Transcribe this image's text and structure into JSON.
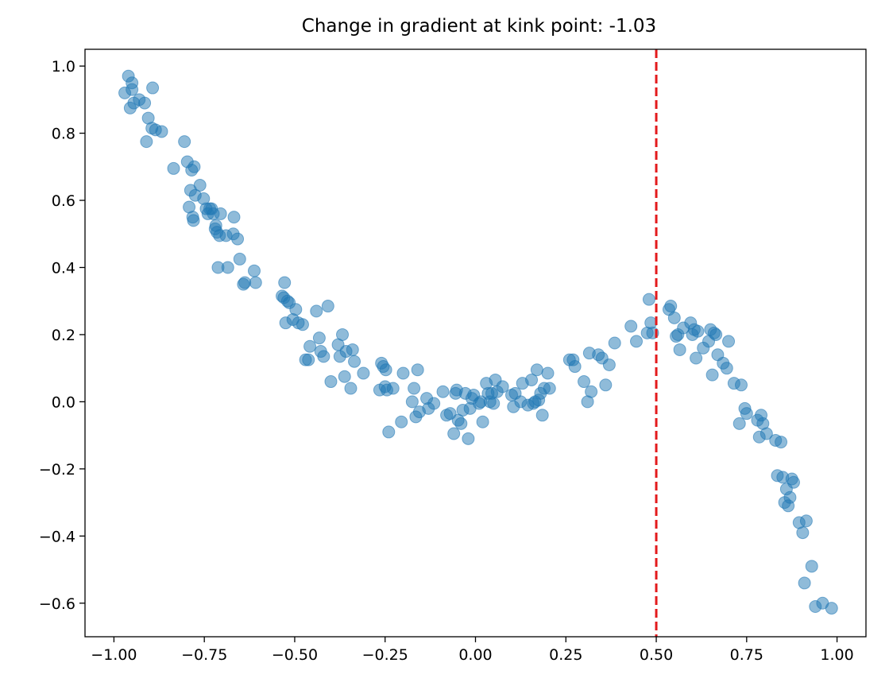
{
  "chart_data": {
    "type": "scatter",
    "title": "Change in gradient at kink point: -1.03",
    "xlabel": "",
    "ylabel": "",
    "xlim": [
      -1.08,
      1.08
    ],
    "ylim": [
      -0.7,
      1.05
    ],
    "x_ticks": [
      -1.0,
      -0.75,
      -0.5,
      -0.25,
      0.0,
      0.25,
      0.5,
      0.75,
      1.0
    ],
    "x_tick_labels": [
      "−1.00",
      "−0.75",
      "−0.50",
      "−0.25",
      "0.00",
      "0.25",
      "0.50",
      "0.75",
      "1.00"
    ],
    "y_ticks": [
      -0.6,
      -0.4,
      -0.2,
      0.0,
      0.2,
      0.4,
      0.6,
      0.8,
      1.0
    ],
    "y_tick_labels": [
      "−0.6",
      "−0.4",
      "−0.2",
      "0.0",
      "0.2",
      "0.4",
      "0.6",
      "0.8",
      "1.0"
    ],
    "grid": false,
    "marker_color": "#1f77b4",
    "kink_line": {
      "x": 0.5,
      "color": "#e31a1c",
      "style": "dashed"
    },
    "points": [
      [
        -0.97,
        0.92
      ],
      [
        -0.96,
        0.97
      ],
      [
        -0.955,
        0.875
      ],
      [
        -0.95,
        0.93
      ],
      [
        -0.945,
        0.89
      ],
      [
        -0.95,
        0.95
      ],
      [
        -0.93,
        0.9
      ],
      [
        -0.915,
        0.89
      ],
      [
        -0.91,
        0.775
      ],
      [
        -0.905,
        0.845
      ],
      [
        -0.895,
        0.815
      ],
      [
        -0.893,
        0.935
      ],
      [
        -0.885,
        0.81
      ],
      [
        -0.868,
        0.805
      ],
      [
        -0.835,
        0.695
      ],
      [
        -0.805,
        0.775
      ],
      [
        -0.797,
        0.715
      ],
      [
        -0.792,
        0.58
      ],
      [
        -0.788,
        0.63
      ],
      [
        -0.785,
        0.69
      ],
      [
        -0.782,
        0.55
      ],
      [
        -0.78,
        0.54
      ],
      [
        -0.778,
        0.7
      ],
      [
        -0.775,
        0.615
      ],
      [
        -0.762,
        0.645
      ],
      [
        -0.752,
        0.605
      ],
      [
        -0.745,
        0.575
      ],
      [
        -0.74,
        0.56
      ],
      [
        -0.735,
        0.575
      ],
      [
        -0.73,
        0.575
      ],
      [
        -0.725,
        0.56
      ],
      [
        -0.72,
        0.515
      ],
      [
        -0.718,
        0.525
      ],
      [
        -0.715,
        0.505
      ],
      [
        -0.712,
        0.4
      ],
      [
        -0.708,
        0.495
      ],
      [
        -0.705,
        0.56
      ],
      [
        -0.69,
        0.495
      ],
      [
        -0.685,
        0.4
      ],
      [
        -0.67,
        0.5
      ],
      [
        -0.668,
        0.55
      ],
      [
        -0.658,
        0.485
      ],
      [
        -0.652,
        0.425
      ],
      [
        -0.642,
        0.35
      ],
      [
        -0.638,
        0.355
      ],
      [
        -0.612,
        0.39
      ],
      [
        -0.608,
        0.355
      ],
      [
        -0.535,
        0.315
      ],
      [
        -0.53,
        0.31
      ],
      [
        -0.528,
        0.355
      ],
      [
        -0.525,
        0.235
      ],
      [
        -0.52,
        0.3
      ],
      [
        -0.515,
        0.295
      ],
      [
        -0.505,
        0.245
      ],
      [
        -0.497,
        0.275
      ],
      [
        -0.49,
        0.235
      ],
      [
        -0.478,
        0.23
      ],
      [
        -0.47,
        0.125
      ],
      [
        -0.462,
        0.125
      ],
      [
        -0.458,
        0.165
      ],
      [
        -0.44,
        0.27
      ],
      [
        -0.432,
        0.19
      ],
      [
        -0.428,
        0.15
      ],
      [
        -0.42,
        0.135
      ],
      [
        -0.408,
        0.285
      ],
      [
        -0.4,
        0.06
      ],
      [
        -0.38,
        0.17
      ],
      [
        -0.375,
        0.135
      ],
      [
        -0.368,
        0.2
      ],
      [
        -0.362,
        0.075
      ],
      [
        -0.358,
        0.15
      ],
      [
        -0.345,
        0.04
      ],
      [
        -0.34,
        0.155
      ],
      [
        -0.335,
        0.12
      ],
      [
        -0.31,
        0.085
      ],
      [
        -0.265,
        0.035
      ],
      [
        -0.26,
        0.115
      ],
      [
        -0.255,
        0.105
      ],
      [
        -0.25,
        0.045
      ],
      [
        -0.248,
        0.095
      ],
      [
        -0.245,
        0.035
      ],
      [
        -0.24,
        -0.09
      ],
      [
        -0.228,
        0.04
      ],
      [
        -0.205,
        -0.06
      ],
      [
        -0.2,
        0.085
      ],
      [
        -0.175,
        0.0
      ],
      [
        -0.17,
        0.04
      ],
      [
        -0.165,
        -0.045
      ],
      [
        -0.16,
        0.095
      ],
      [
        -0.155,
        -0.03
      ],
      [
        -0.135,
        0.01
      ],
      [
        -0.13,
        -0.02
      ],
      [
        -0.115,
        -0.005
      ],
      [
        -0.09,
        0.03
      ],
      [
        -0.08,
        -0.04
      ],
      [
        -0.07,
        -0.035
      ],
      [
        -0.06,
        -0.095
      ],
      [
        -0.055,
        0.025
      ],
      [
        -0.052,
        0.035
      ],
      [
        -0.048,
        -0.055
      ],
      [
        -0.04,
        -0.065
      ],
      [
        -0.035,
        -0.025
      ],
      [
        -0.028,
        0.025
      ],
      [
        -0.02,
        -0.11
      ],
      [
        -0.015,
        -0.02
      ],
      [
        -0.01,
        0.01
      ],
      [
        -0.005,
        0.02
      ],
      [
        0.01,
        -0.005
      ],
      [
        0.015,
        0.0
      ],
      [
        0.02,
        -0.06
      ],
      [
        0.03,
        0.055
      ],
      [
        0.035,
        0.025
      ],
      [
        0.04,
        0.0
      ],
      [
        0.045,
        0.025
      ],
      [
        0.05,
        -0.005
      ],
      [
        0.055,
        0.065
      ],
      [
        0.06,
        0.03
      ],
      [
        0.075,
        0.045
      ],
      [
        0.1,
        0.02
      ],
      [
        0.105,
        -0.015
      ],
      [
        0.11,
        0.025
      ],
      [
        0.125,
        0.0
      ],
      [
        0.13,
        0.055
      ],
      [
        0.145,
        -0.01
      ],
      [
        0.155,
        0.065
      ],
      [
        0.16,
        -0.005
      ],
      [
        0.165,
        0.0
      ],
      [
        0.17,
        0.095
      ],
      [
        0.175,
        0.005
      ],
      [
        0.18,
        0.025
      ],
      [
        0.185,
        -0.04
      ],
      [
        0.19,
        0.04
      ],
      [
        0.2,
        0.085
      ],
      [
        0.205,
        0.04
      ],
      [
        0.26,
        0.125
      ],
      [
        0.27,
        0.125
      ],
      [
        0.275,
        0.105
      ],
      [
        0.3,
        0.06
      ],
      [
        0.31,
        0.0
      ],
      [
        0.315,
        0.145
      ],
      [
        0.32,
        0.03
      ],
      [
        0.34,
        0.14
      ],
      [
        0.35,
        0.13
      ],
      [
        0.36,
        0.05
      ],
      [
        0.37,
        0.11
      ],
      [
        0.385,
        0.175
      ],
      [
        0.43,
        0.225
      ],
      [
        0.445,
        0.18
      ],
      [
        0.475,
        0.205
      ],
      [
        0.48,
        0.305
      ],
      [
        0.485,
        0.235
      ],
      [
        0.49,
        0.205
      ],
      [
        0.535,
        0.275
      ],
      [
        0.54,
        0.285
      ],
      [
        0.55,
        0.25
      ],
      [
        0.555,
        0.195
      ],
      [
        0.56,
        0.2
      ],
      [
        0.565,
        0.155
      ],
      [
        0.575,
        0.22
      ],
      [
        0.595,
        0.235
      ],
      [
        0.6,
        0.2
      ],
      [
        0.605,
        0.215
      ],
      [
        0.61,
        0.13
      ],
      [
        0.615,
        0.21
      ],
      [
        0.63,
        0.16
      ],
      [
        0.645,
        0.18
      ],
      [
        0.65,
        0.215
      ],
      [
        0.655,
        0.08
      ],
      [
        0.66,
        0.205
      ],
      [
        0.665,
        0.2
      ],
      [
        0.67,
        0.14
      ],
      [
        0.685,
        0.115
      ],
      [
        0.695,
        0.1
      ],
      [
        0.7,
        0.18
      ],
      [
        0.715,
        0.055
      ],
      [
        0.73,
        -0.065
      ],
      [
        0.735,
        0.05
      ],
      [
        0.745,
        -0.02
      ],
      [
        0.75,
        -0.035
      ],
      [
        0.78,
        -0.055
      ],
      [
        0.785,
        -0.105
      ],
      [
        0.79,
        -0.04
      ],
      [
        0.795,
        -0.065
      ],
      [
        0.805,
        -0.095
      ],
      [
        0.83,
        -0.115
      ],
      [
        0.835,
        -0.22
      ],
      [
        0.845,
        -0.12
      ],
      [
        0.85,
        -0.225
      ],
      [
        0.855,
        -0.3
      ],
      [
        0.86,
        -0.26
      ],
      [
        0.865,
        -0.31
      ],
      [
        0.87,
        -0.285
      ],
      [
        0.875,
        -0.23
      ],
      [
        0.88,
        -0.24
      ],
      [
        0.895,
        -0.36
      ],
      [
        0.905,
        -0.39
      ],
      [
        0.91,
        -0.54
      ],
      [
        0.915,
        -0.355
      ],
      [
        0.93,
        -0.49
      ],
      [
        0.94,
        -0.61
      ],
      [
        0.96,
        -0.6
      ],
      [
        0.985,
        -0.615
      ]
    ]
  }
}
